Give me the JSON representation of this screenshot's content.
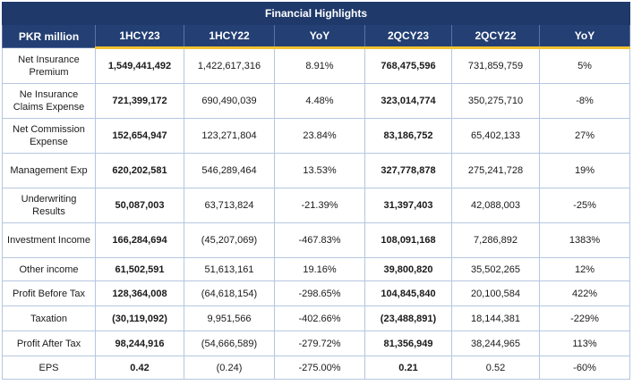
{
  "title": "Financial Highlights",
  "columns": [
    "PKR million",
    "1HCY23",
    "1HCY22",
    "YoY",
    "2QCY23",
    "2QCY22",
    "YoY"
  ],
  "rows": [
    {
      "label": "Net Insurance Premium",
      "c1": "1,549,441,492",
      "c2": "1,422,617,316",
      "c3": "8.91%",
      "c4": "768,475,596",
      "c5": "731,859,759",
      "c6": "5%"
    },
    {
      "label": "Ne Insurance Claims Expense",
      "c1": "721,399,172",
      "c2": "690,490,039",
      "c3": "4.48%",
      "c4": "323,014,774",
      "c5": "350,275,710",
      "c6": "-8%"
    },
    {
      "label": "Net Commission Expense",
      "c1": "152,654,947",
      "c2": "123,271,804",
      "c3": "23.84%",
      "c4": "83,186,752",
      "c5": "65,402,133",
      "c6": "27%"
    },
    {
      "label": "Management Exp",
      "c1": "620,202,581",
      "c2": "546,289,464",
      "c3": "13.53%",
      "c4": "327,778,878",
      "c5": "275,241,728",
      "c6": "19%"
    },
    {
      "label": "Underwriting Results",
      "c1": "50,087,003",
      "c2": "63,713,824",
      "c3": "-21.39%",
      "c4": "31,397,403",
      "c5": "42,088,003",
      "c6": "-25%"
    },
    {
      "label": "Investment Income",
      "c1": "166,284,694",
      "c2": "(45,207,069)",
      "c3": "-467.83%",
      "c4": "108,091,168",
      "c5": "7,286,892",
      "c6": "1383%"
    },
    {
      "label": "Other income",
      "c1": "61,502,591",
      "c2": "51,613,161",
      "c3": "19.16%",
      "c4": "39,800,820",
      "c5": "35,502,265",
      "c6": "12%"
    },
    {
      "label": "Profit Before Tax",
      "c1": "128,364,008",
      "c2": "(64,618,154)",
      "c3": "-298.65%",
      "c4": "104,845,840",
      "c5": "20,100,584",
      "c6": "422%"
    },
    {
      "label": "Taxation",
      "c1": "(30,119,092)",
      "c2": "9,951,566",
      "c3": "-402.66%",
      "c4": "(23,488,891)",
      "c5": "18,144,381",
      "c6": "-229%"
    },
    {
      "label": "Profit After Tax",
      "c1": "98,244,916",
      "c2": "(54,666,589)",
      "c3": "-279.72%",
      "c4": "81,356,949",
      "c5": "38,244,965",
      "c6": "113%"
    },
    {
      "label": "EPS",
      "c1": "0.42",
      "c2": "(0.24)",
      "c3": "-275.00%",
      "c4": "0.21",
      "c5": "0.52",
      "c6": "-60%"
    }
  ],
  "colors": {
    "header_bg": "#233f73",
    "accent": "#f2c230",
    "grid": "#b5c7e0"
  }
}
